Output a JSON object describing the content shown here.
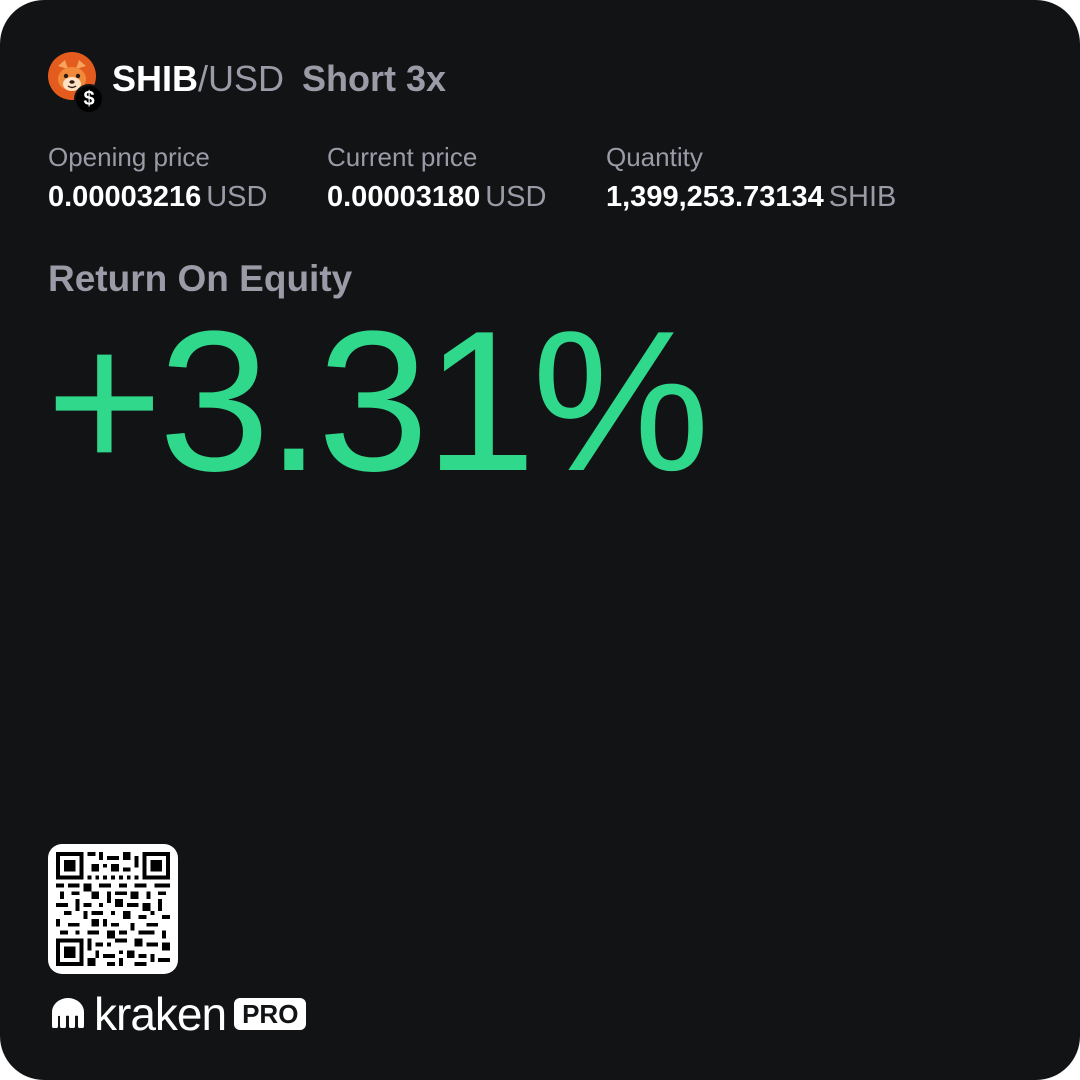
{
  "header": {
    "coin_icon": "shiba-inu-icon",
    "quote_badge_icon": "dollar-icon",
    "quote_badge_symbol": "$",
    "base": "SHIB",
    "quote": "/USD",
    "position": "Short 3x"
  },
  "stats": [
    {
      "label": "Opening price",
      "value": "0.00003216",
      "unit": "USD"
    },
    {
      "label": "Current price",
      "value": "0.00003180",
      "unit": "USD"
    },
    {
      "label": "Quantity",
      "value": "1,399,253.73134",
      "unit": "SHIB"
    }
  ],
  "roe": {
    "label": "Return On Equity",
    "value": "+3.31%"
  },
  "footer": {
    "qr_icon": "qr-code-icon",
    "brand": "kraken",
    "badge": "PRO"
  },
  "colors": {
    "background": "#121315",
    "muted": "#9a9ba6",
    "positive": "#2fd88a",
    "coin_orange": "#e45b1e"
  }
}
